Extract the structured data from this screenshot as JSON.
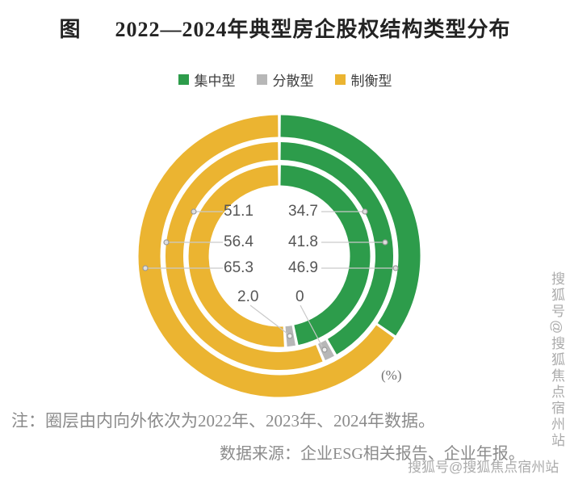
{
  "title": {
    "prefix": "图",
    "main": "2022—2024年典型房企股权结构类型分布"
  },
  "legend": [
    {
      "label": "集中型",
      "color": "#2D9C4B"
    },
    {
      "label": "分散型",
      "color": "#B7B7B7"
    },
    {
      "label": "制衡型",
      "color": "#EBB431"
    }
  ],
  "chart_data": {
    "type": "pie",
    "subtype": "multi-ring-donut",
    "title": "2022—2024年典型房企股权结构类型分布",
    "unit": "(%)",
    "legend_position": "top",
    "series_names": [
      "集中型",
      "分散型",
      "制衡型"
    ],
    "colors": [
      "#2D9C4B",
      "#B7B7B7",
      "#EBB431"
    ],
    "rings_order_note": "inner ring = 2022, middle = 2023, outer = 2024",
    "rings": [
      {
        "year": "2022",
        "position": "inner",
        "values": [
          46.9,
          2.0,
          51.1
        ]
      },
      {
        "year": "2023",
        "position": "middle",
        "values": [
          41.8,
          1.8,
          56.4
        ]
      },
      {
        "year": "2024",
        "position": "outer",
        "values": [
          34.7,
          0,
          65.3
        ]
      }
    ]
  },
  "center_labels": {
    "rows": [
      {
        "left": "51.1",
        "right": "34.7"
      },
      {
        "left": "56.4",
        "right": "41.8"
      },
      {
        "left": "65.3",
        "right": "46.9"
      },
      {
        "left": "2.0",
        "right": "0"
      }
    ]
  },
  "note": "注：圈层由内向外依次为2022年、2023年、2024年数据。",
  "source": "数据来源：企业ESG相关报告、企业年报。",
  "watermark": "搜狐号@搜狐焦点宿州站"
}
